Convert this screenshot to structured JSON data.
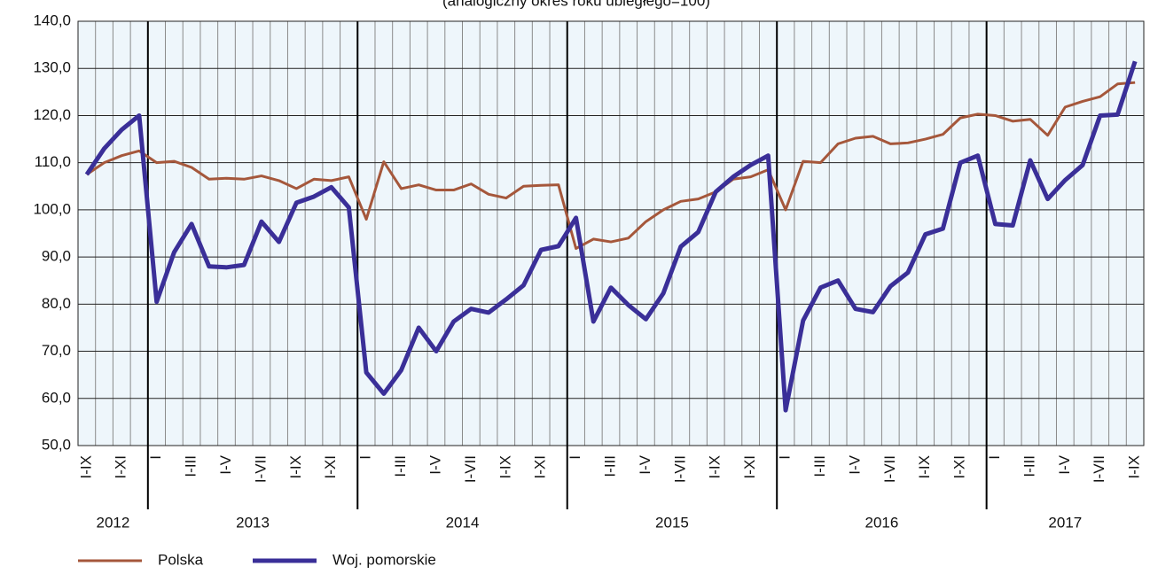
{
  "chart_data": {
    "type": "line",
    "title": "(analogiczny okres roku ubiegłego=100)",
    "categories": [
      "I-IX",
      null,
      "I-XI",
      null,
      "I",
      null,
      "I-III",
      null,
      "I-V",
      null,
      "I-VII",
      null,
      "I-IX",
      null,
      "I-XI",
      null,
      "I",
      null,
      "I-III",
      null,
      "I-V",
      null,
      "I-VII",
      null,
      "I-IX",
      null,
      "I-XI",
      null,
      "I",
      null,
      "I-III",
      null,
      "I-V",
      null,
      "I-VII",
      null,
      "I-IX",
      null,
      "I-XI",
      null,
      "I",
      null,
      "I-III",
      null,
      "I-V",
      null,
      "I-VII",
      null,
      "I-IX",
      null,
      "I-XI",
      null,
      "I",
      null,
      "I-III",
      null,
      "I-V",
      null,
      "I-VII",
      null,
      "I-IX"
    ],
    "groups": [
      {
        "label": "2012",
        "size": 4
      },
      {
        "label": "2013",
        "size": 12
      },
      {
        "label": "2014",
        "size": 12
      },
      {
        "label": "2015",
        "size": 12
      },
      {
        "label": "2016",
        "size": 12
      },
      {
        "label": "2017",
        "size": 9
      }
    ],
    "series": [
      {
        "name": "Polska",
        "color": "#a5573b",
        "width": 3,
        "values": [
          107.5,
          110,
          111.5,
          112.5,
          110,
          110.3,
          109,
          106.5,
          106.7,
          106.5,
          107.2,
          106.2,
          104.5,
          106.5,
          106.2,
          107,
          98,
          110.2,
          104.5,
          105.3,
          104.2,
          104.2,
          105.5,
          103.3,
          102.5,
          105,
          105.2,
          105.3,
          91.8,
          93.8,
          93.2,
          94,
          97.5,
          100,
          101.8,
          102.3,
          103.8,
          106.5,
          107,
          108.5,
          100,
          110.3,
          110,
          114,
          115.2,
          115.6,
          114,
          114.2,
          115,
          116,
          119.5,
          120.3,
          120,
          118.8,
          119.2,
          115.8,
          121.8,
          123,
          124,
          126.7,
          127
        ]
      },
      {
        "name": "Woj. pomorskie",
        "color": "#3a2f98",
        "width": 5,
        "values": [
          107.5,
          113,
          117,
          120,
          80.5,
          91,
          97,
          88,
          87.8,
          88.3,
          97.5,
          93.2,
          101.5,
          102.8,
          104.8,
          100.5,
          65.5,
          61,
          66,
          75,
          70,
          76.3,
          79,
          78.2,
          81,
          84,
          91.5,
          92.3,
          98.3,
          76.3,
          83.5,
          79.8,
          76.8,
          82.3,
          92.2,
          95.3,
          103.8,
          107,
          109.5,
          111.5,
          57.5,
          76.5,
          83.5,
          85,
          79,
          78.3,
          83.8,
          86.7,
          94.8,
          96,
          110,
          111.5,
          97,
          96.7,
          110.5,
          102.3,
          106.3,
          109.5,
          120,
          120.2,
          131.5
        ]
      }
    ],
    "ylim": [
      50,
      140
    ],
    "yticks": [
      {
        "value": 50,
        "label": "50,0"
      },
      {
        "value": 60,
        "label": "60,0"
      },
      {
        "value": 70,
        "label": "70,0"
      },
      {
        "value": 80,
        "label": "80,0"
      },
      {
        "value": 90,
        "label": "90,0"
      },
      {
        "value": 100,
        "label": "100,0"
      },
      {
        "value": 110,
        "label": "110,0"
      },
      {
        "value": 120,
        "label": "120,0"
      },
      {
        "value": 130,
        "label": "130,0"
      },
      {
        "value": 140,
        "label": "140,0"
      }
    ],
    "grid": true,
    "legend": "bottom-left"
  }
}
